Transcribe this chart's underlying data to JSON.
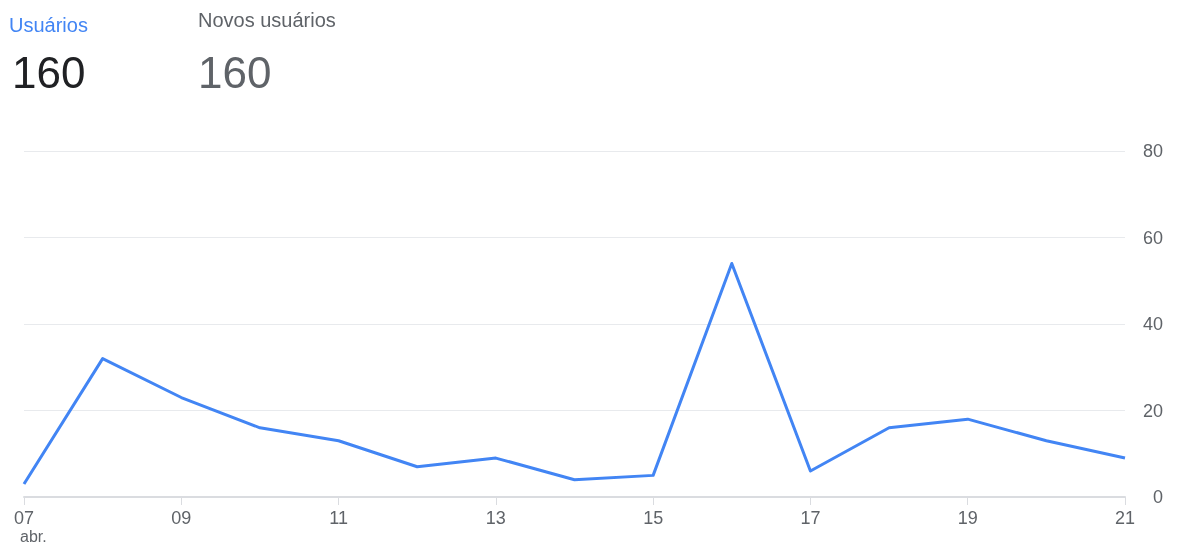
{
  "chart_data": {
    "type": "line",
    "title": "Usuários",
    "annotations": [
      "160",
      "Novos usuários",
      "160",
      "abr."
    ],
    "categories": [
      "07",
      null,
      "09",
      null,
      "11",
      null,
      "13",
      null,
      "15",
      null,
      "17",
      null,
      "19",
      null,
      "21"
    ],
    "series": [
      {
        "color": "#4285f4",
        "values": [
          3,
          32,
          23,
          16,
          13,
          7,
          9,
          4,
          5,
          54,
          6,
          16,
          18,
          13,
          9
        ]
      }
    ],
    "ylim": [
      0,
      80
    ],
    "yticks": [
      0,
      20,
      40,
      60,
      80
    ],
    "grid": "y",
    "marker": "none",
    "line_style": "solid"
  }
}
